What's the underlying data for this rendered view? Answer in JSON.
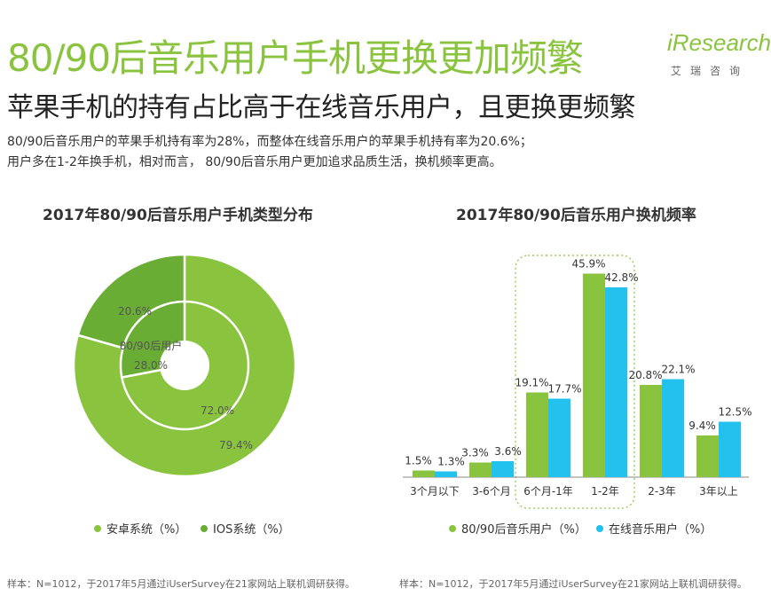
{
  "header": {
    "title": "80/90后音乐用户手机更换更加频繁",
    "subtitle": "苹果手机的持有占比高于在线音乐用户，且更换更频繁",
    "desc_line1": "80/90后音乐用户的苹果手机持有率为28%，而整体在线音乐用户的苹果手机持有率为20.6%；",
    "desc_line2": "用户多在1-2年换手机，相对而言， 80/90后音乐用户更加追求品质生活，换机频率更高。"
  },
  "logo": {
    "brand": "iResearch",
    "sub": "艾瑞咨询"
  },
  "colors": {
    "green": "#8ac43f",
    "green_dark": "#69ad35",
    "cyan": "#22c1ee"
  },
  "chart_data": [
    {
      "type": "pie",
      "variant": "double-donut",
      "title": "2017年80/90后音乐用户手机类型分布",
      "center_label": "80/90后用户",
      "rings": [
        {
          "name": "outer",
          "slices": [
            {
              "label": "安卓系统（%）",
              "value": 79.4
            },
            {
              "label": "IOS系统（%）",
              "value": 20.6
            }
          ]
        },
        {
          "name": "inner",
          "slices": [
            {
              "label": "安卓系统（%）",
              "value": 72.0
            },
            {
              "label": "IOS系统（%）",
              "value": 28.0
            }
          ]
        }
      ],
      "data_labels": {
        "outer_ios": "20.6%",
        "outer_android": "79.4%",
        "inner_ios": "28.0%",
        "inner_android": "72.0%"
      },
      "legend": [
        "安卓系统（%）",
        "IOS系统（%）"
      ],
      "source": "样本：N=1012，于2017年5月通过iUserSurvey在21家网站上联机调研获得。"
    },
    {
      "type": "bar",
      "title": "2017年80/90后音乐用户换机频率",
      "categories": [
        "3个月以下",
        "3-6个月",
        "6个月-1年",
        "1-2年",
        "2-3年",
        "3年以上"
      ],
      "series": [
        {
          "name": "80/90后音乐用户（%）",
          "values": [
            1.5,
            3.3,
            19.1,
            45.9,
            20.8,
            9.4
          ],
          "labels": [
            "1.5%",
            "3.3%",
            "19.1%",
            "45.9%",
            "20.8%",
            "9.4%"
          ]
        },
        {
          "name": "在线音乐用户（%）",
          "values": [
            1.3,
            3.6,
            17.7,
            42.8,
            22.1,
            12.5
          ],
          "labels": [
            "1.3%",
            "3.6%",
            "17.7%",
            "42.8%",
            "22.1%",
            "12.5%"
          ]
        }
      ],
      "ylim": [
        0,
        50
      ],
      "highlight": [
        "6个月-1年",
        "1-2年"
      ],
      "source": "样本：N=1012，于2017年5月通过iUserSurvey在21家网站上联机调研获得。"
    }
  ]
}
